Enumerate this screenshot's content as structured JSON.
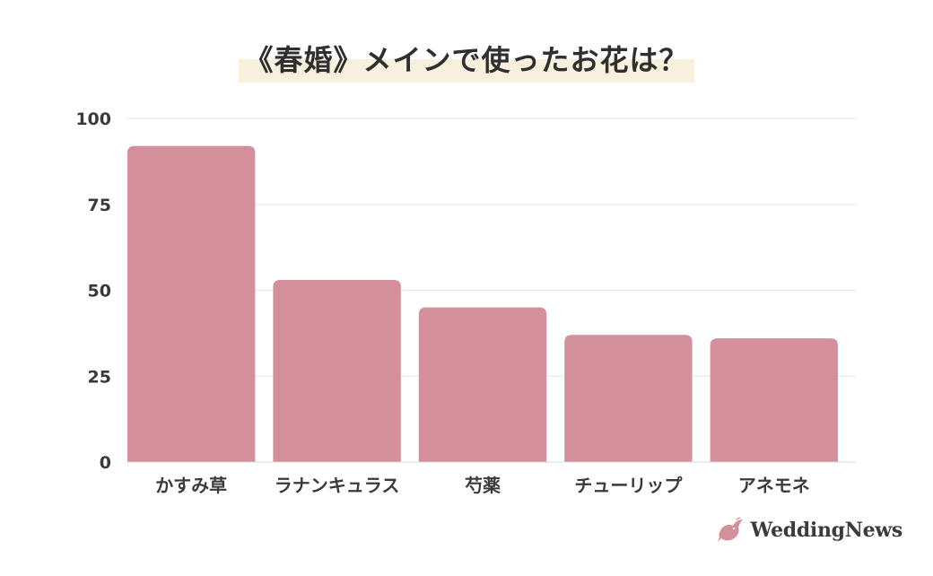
{
  "chart_data": {
    "type": "bar",
    "title": "《春婚》メインで使ったお花は？",
    "categories": [
      "かすみ草",
      "ラナンキュラス",
      "芍薬",
      "チューリップ",
      "アネモネ"
    ],
    "values": [
      92,
      53,
      45,
      37,
      36
    ],
    "ylim": [
      0,
      100
    ],
    "yticks": [
      0,
      25,
      50,
      75,
      100
    ],
    "xlabel": "",
    "ylabel": "",
    "grid": true,
    "bar_color": "#d4909a",
    "grid_color": "#e6e6e6"
  },
  "logo": {
    "text": "WeddingNews",
    "icon": "dove-icon",
    "color": "#d4909a"
  }
}
